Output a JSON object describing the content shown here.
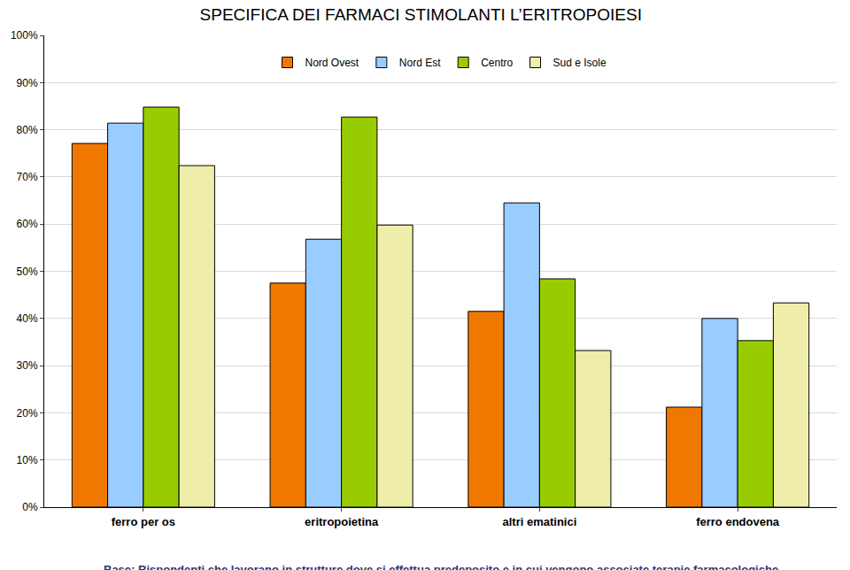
{
  "chart_data": {
    "type": "bar",
    "title": "SPECIFICA DEI FARMACI STIMOLANTI L’ERITROPOIESI",
    "categories": [
      "ferro per os",
      "eritropoietina",
      "altri ematinici",
      "ferro endovena"
    ],
    "series": [
      {
        "name": "Nord Ovest",
        "color": "#f07800",
        "values": [
          77.1,
          47.5,
          41.5,
          21.2
        ]
      },
      {
        "name": "Nord Est",
        "color": "#99ccff",
        "values": [
          81.4,
          56.8,
          64.5,
          40.0
        ]
      },
      {
        "name": "Centro",
        "color": "#99cc00",
        "values": [
          84.8,
          82.7,
          48.4,
          35.3
        ]
      },
      {
        "name": "Sud e Isole",
        "color": "#eeeeaa",
        "values": [
          72.4,
          59.8,
          33.2,
          43.3
        ]
      }
    ],
    "ylim": [
      0,
      100
    ],
    "yticks": [
      {
        "value": 0,
        "label": "0%"
      },
      {
        "value": 10,
        "label": "10%"
      },
      {
        "value": 20,
        "label": "20%"
      },
      {
        "value": 30,
        "label": "30%"
      },
      {
        "value": 40,
        "label": "40%"
      },
      {
        "value": 50,
        "label": "50%"
      },
      {
        "value": 60,
        "label": "60%"
      },
      {
        "value": 70,
        "label": "70%"
      },
      {
        "value": 80,
        "label": "80%"
      },
      {
        "value": 90,
        "label": "90%"
      },
      {
        "value": 100,
        "label": "100%"
      }
    ],
    "grid": true,
    "legend": "top",
    "annotations": [
      {
        "text": "Base: Rispondenti che lavorano in strutture dove si effettua predeposito e in cui vengono associate terapie farmacologiche"
      }
    ]
  }
}
